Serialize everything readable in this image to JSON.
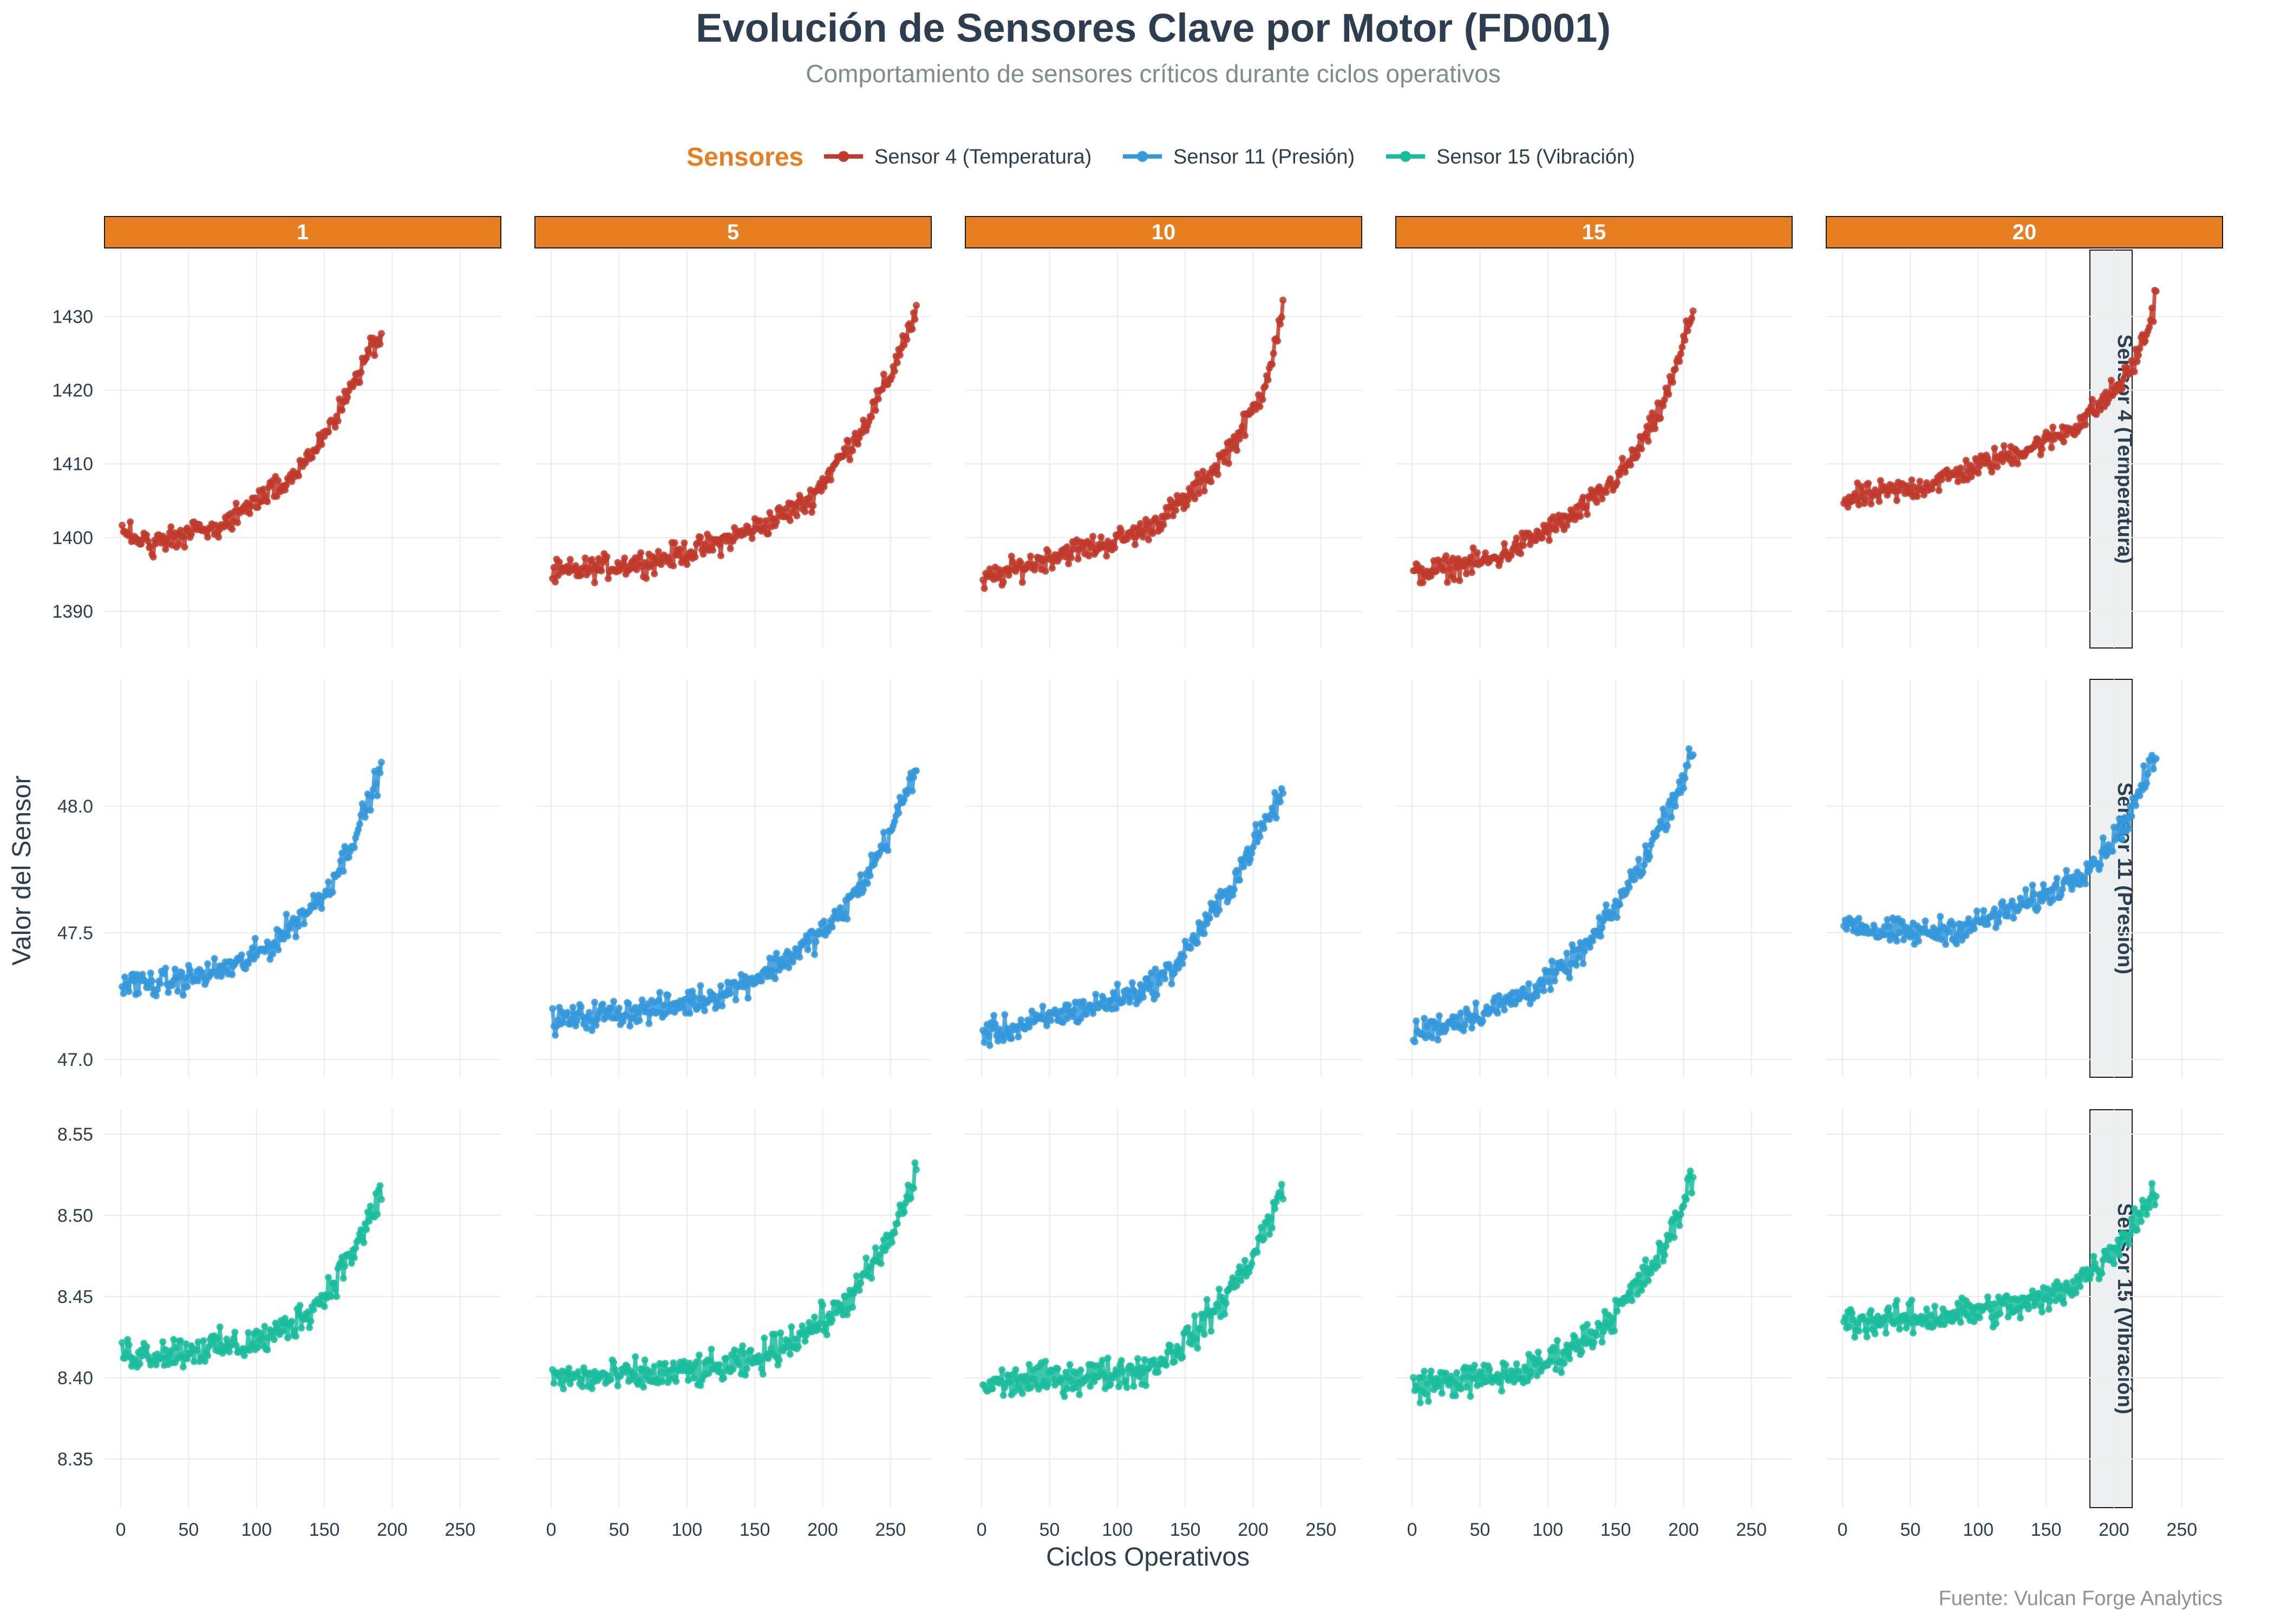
{
  "title": "Evolución de Sensores Clave por Motor (FD001)",
  "subtitle": "Comportamiento de sensores críticos durante ciclos operativos",
  "caption": "Fuente: Vulcan Forge Analytics",
  "legend": {
    "title": "Sensores",
    "items": [
      {
        "label": "Sensor 4 (Temperatura)",
        "color": "#c0392b"
      },
      {
        "label": "Sensor 11 (Presión)",
        "color": "#3498db"
      },
      {
        "label": "Sensor 15 (Vibración)",
        "color": "#1abc9c"
      }
    ]
  },
  "chart_data": {
    "type": "line",
    "facet_columns": [
      "1",
      "5",
      "10",
      "15",
      "20"
    ],
    "facet_rows": [
      "Sensor 4 (Temperatura)",
      "Sensor 11 (Presión)",
      "Sensor 15 (Vibración)"
    ],
    "xlabel": "Ciclos Operativos",
    "ylabel": "Valor del Sensor",
    "xlim": [
      -12,
      280
    ],
    "xticks": [
      0,
      50,
      100,
      150,
      200,
      250
    ],
    "grid": true,
    "legend_position": "top",
    "rows": [
      {
        "name": "Sensor 4 (Temperatura)",
        "color": "#c0392b",
        "ylim": [
          1385,
          1439
        ],
        "yticks": [
          1390,
          1400,
          1410,
          1420,
          1430
        ],
        "cycles": [
          192,
          269,
          222,
          207,
          231
        ],
        "motors": [
          {
            "motor": "1",
            "points": [
              [
                0,
                1401
              ],
              [
                20,
                1399
              ],
              [
                40,
                1400
              ],
              [
                60,
                1401
              ],
              [
                80,
                1402
              ],
              [
                100,
                1405
              ],
              [
                120,
                1407
              ],
              [
                140,
                1411
              ],
              [
                160,
                1417
              ],
              [
                175,
                1422
              ],
              [
                185,
                1426
              ],
              [
                192,
                1427
              ]
            ]
          },
          {
            "motor": "5",
            "points": [
              [
                0,
                1395
              ],
              [
                40,
                1396
              ],
              [
                80,
                1397
              ],
              [
                120,
                1399
              ],
              [
                160,
                1402
              ],
              [
                190,
                1405
              ],
              [
                210,
                1410
              ],
              [
                230,
                1415
              ],
              [
                250,
                1422
              ],
              [
                260,
                1427
              ],
              [
                269,
                1430
              ]
            ]
          },
          {
            "motor": "10",
            "points": [
              [
                0,
                1394
              ],
              [
                30,
                1396
              ],
              [
                60,
                1398
              ],
              [
                90,
                1399
              ],
              [
                120,
                1401
              ],
              [
                150,
                1405
              ],
              [
                170,
                1409
              ],
              [
                190,
                1414
              ],
              [
                205,
                1419
              ],
              [
                215,
                1425
              ],
              [
                222,
                1431
              ]
            ]
          },
          {
            "motor": "15",
            "points": [
              [
                0,
                1395
              ],
              [
                30,
                1396
              ],
              [
                60,
                1397
              ],
              [
                90,
                1400
              ],
              [
                120,
                1403
              ],
              [
                140,
                1406
              ],
              [
                160,
                1410
              ],
              [
                180,
                1416
              ],
              [
                195,
                1423
              ],
              [
                207,
                1431
              ]
            ]
          },
          {
            "motor": "20",
            "points": [
              [
                0,
                1405
              ],
              [
                30,
                1406
              ],
              [
                60,
                1407
              ],
              [
                90,
                1409
              ],
              [
                120,
                1411
              ],
              [
                150,
                1413
              ],
              [
                170,
                1415
              ],
              [
                190,
                1418
              ],
              [
                210,
                1422
              ],
              [
                225,
                1428
              ],
              [
                231,
                1433
              ]
            ]
          }
        ]
      },
      {
        "name": "Sensor 11 (Presión)",
        "color": "#3498db",
        "ylim": [
          46.93,
          48.5
        ],
        "yticks": [
          47.0,
          47.5,
          48.0
        ],
        "yticklabels": [
          "47.0",
          "47.5",
          "48.0"
        ],
        "cycles": [
          192,
          269,
          222,
          207,
          231
        ],
        "motors": [
          {
            "motor": "1",
            "points": [
              [
                0,
                47.3
              ],
              [
                30,
                47.3
              ],
              [
                60,
                47.33
              ],
              [
                90,
                47.38
              ],
              [
                110,
                47.45
              ],
              [
                130,
                47.55
              ],
              [
                150,
                47.65
              ],
              [
                165,
                47.8
              ],
              [
                180,
                47.98
              ],
              [
                192,
                48.15
              ]
            ]
          },
          {
            "motor": "5",
            "points": [
              [
                0,
                47.15
              ],
              [
                40,
                47.18
              ],
              [
                80,
                47.2
              ],
              [
                120,
                47.25
              ],
              [
                150,
                47.32
              ],
              [
                180,
                47.42
              ],
              [
                210,
                47.55
              ],
              [
                230,
                47.7
              ],
              [
                250,
                47.9
              ],
              [
                269,
                48.15
              ]
            ]
          },
          {
            "motor": "10",
            "points": [
              [
                0,
                47.1
              ],
              [
                30,
                47.13
              ],
              [
                60,
                47.18
              ],
              [
                90,
                47.22
              ],
              [
                120,
                47.28
              ],
              [
                140,
                47.35
              ],
              [
                160,
                47.5
              ],
              [
                180,
                47.65
              ],
              [
                200,
                47.85
              ],
              [
                222,
                48.05
              ]
            ]
          },
          {
            "motor": "15",
            "points": [
              [
                0,
                47.1
              ],
              [
                30,
                47.15
              ],
              [
                60,
                47.2
              ],
              [
                90,
                47.28
              ],
              [
                110,
                47.35
              ],
              [
                130,
                47.45
              ],
              [
                150,
                47.6
              ],
              [
                170,
                47.78
              ],
              [
                190,
                48.0
              ],
              [
                207,
                48.2
              ]
            ]
          },
          {
            "motor": "20",
            "points": [
              [
                0,
                47.55
              ],
              [
                30,
                47.5
              ],
              [
                60,
                47.5
              ],
              [
                90,
                47.52
              ],
              [
                120,
                47.58
              ],
              [
                150,
                47.65
              ],
              [
                170,
                47.72
              ],
              [
                190,
                47.8
              ],
              [
                210,
                47.95
              ],
              [
                231,
                48.2
              ]
            ]
          }
        ]
      },
      {
        "name": "Sensor 15 (Vibración)",
        "color": "#1abc9c",
        "ylim": [
          8.32,
          8.565
        ],
        "yticks": [
          8.35,
          8.4,
          8.45,
          8.5,
          8.55
        ],
        "yticklabels": [
          "8.35",
          "8.40",
          "8.45",
          "8.50",
          "8.55"
        ],
        "cycles": [
          192,
          269,
          222,
          207,
          231
        ],
        "motors": [
          {
            "motor": "1",
            "points": [
              [
                0,
                8.415
              ],
              [
                30,
                8.415
              ],
              [
                60,
                8.418
              ],
              [
                90,
                8.42
              ],
              [
                110,
                8.425
              ],
              [
                130,
                8.435
              ],
              [
                150,
                8.45
              ],
              [
                165,
                8.47
              ],
              [
                180,
                8.49
              ],
              [
                192,
                8.515
              ]
            ]
          },
          {
            "motor": "5",
            "points": [
              [
                0,
                8.4
              ],
              [
                40,
                8.4
              ],
              [
                80,
                8.402
              ],
              [
                120,
                8.405
              ],
              [
                150,
                8.41
              ],
              [
                180,
                8.425
              ],
              [
                210,
                8.44
              ],
              [
                230,
                8.46
              ],
              [
                250,
                8.485
              ],
              [
                269,
                8.525
              ]
            ]
          },
          {
            "motor": "10",
            "points": [
              [
                0,
                8.395
              ],
              [
                30,
                8.398
              ],
              [
                60,
                8.4
              ],
              [
                90,
                8.402
              ],
              [
                120,
                8.405
              ],
              [
                140,
                8.415
              ],
              [
                160,
                8.43
              ],
              [
                180,
                8.45
              ],
              [
                200,
                8.475
              ],
              [
                222,
                8.515
              ]
            ]
          },
          {
            "motor": "15",
            "points": [
              [
                0,
                8.395
              ],
              [
                30,
                8.398
              ],
              [
                60,
                8.4
              ],
              [
                90,
                8.405
              ],
              [
                110,
                8.415
              ],
              [
                130,
                8.425
              ],
              [
                150,
                8.44
              ],
              [
                170,
                8.46
              ],
              [
                190,
                8.485
              ],
              [
                207,
                8.525
              ]
            ]
          },
          {
            "motor": "20",
            "points": [
              [
                0,
                8.435
              ],
              [
                30,
                8.435
              ],
              [
                60,
                8.437
              ],
              [
                90,
                8.44
              ],
              [
                120,
                8.443
              ],
              [
                150,
                8.448
              ],
              [
                170,
                8.458
              ],
              [
                190,
                8.47
              ],
              [
                210,
                8.49
              ],
              [
                231,
                8.515
              ]
            ]
          }
        ]
      }
    ]
  }
}
